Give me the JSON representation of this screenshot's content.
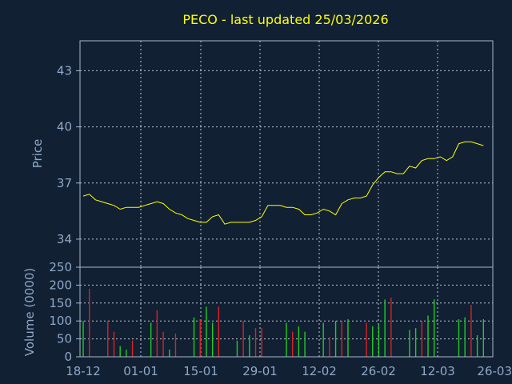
{
  "title": "PECO - last updated 25/03/2026",
  "colors": {
    "background": "#112033",
    "title": "#ffff00",
    "axis_text": "#8fa9c7",
    "frame": "#a9b8cc",
    "grid": "#c0c8d4",
    "price_line": "#ffff00",
    "volume_up": "#22cc22",
    "volume_down": "#dd2222"
  },
  "chart_data": [
    {
      "type": "line",
      "ylabel": "Price",
      "ylim": [
        32.5,
        44.6
      ],
      "yticks": [
        "34",
        "37",
        "40",
        "43"
      ],
      "grid": true,
      "x_index_range": [
        0,
        66
      ],
      "values": [
        36.3,
        36.4,
        36.1,
        36.0,
        35.9,
        35.8,
        35.6,
        35.7,
        35.7,
        35.7,
        35.8,
        35.9,
        36.0,
        35.9,
        35.6,
        35.4,
        35.3,
        35.1,
        35.0,
        34.9,
        34.9,
        35.2,
        35.3,
        34.8,
        34.9,
        34.9,
        34.9,
        34.9,
        35.0,
        35.2,
        35.8,
        35.8,
        35.8,
        35.7,
        35.7,
        35.6,
        35.3,
        35.3,
        35.4,
        35.6,
        35.5,
        35.3,
        35.9,
        36.1,
        36.2,
        36.2,
        36.3,
        36.9,
        37.3,
        37.6,
        37.6,
        37.5,
        37.5,
        37.9,
        37.8,
        38.2,
        38.3,
        38.3,
        38.4,
        38.2,
        38.4,
        39.1,
        39.2,
        39.2,
        39.1,
        39.0
      ]
    },
    {
      "type": "bar",
      "ylabel": "Volume (0000)",
      "ylim": [
        0,
        250
      ],
      "yticks": [
        "0",
        "50",
        "100",
        "150",
        "200",
        "250"
      ],
      "grid": true,
      "x_index_range": [
        0,
        66
      ],
      "values": [
        100,
        190,
        0,
        0,
        100,
        70,
        30,
        20,
        45,
        0,
        0,
        95,
        130,
        70,
        20,
        65,
        0,
        0,
        110,
        105,
        140,
        95,
        140,
        0,
        0,
        45,
        100,
        60,
        80,
        80,
        0,
        0,
        0,
        95,
        70,
        85,
        70,
        0,
        0,
        95,
        55,
        100,
        100,
        105,
        0,
        0,
        95,
        85,
        90,
        160,
        165,
        0,
        0,
        75,
        80,
        100,
        115,
        160,
        0,
        0,
        0,
        105,
        110,
        145,
        60,
        105
      ],
      "colors_by_bar": [
        "up",
        "down",
        "up",
        "up",
        "down",
        "down",
        "up",
        "up",
        "down",
        "up",
        "up",
        "up",
        "down",
        "down",
        "up",
        "down",
        "up",
        "up",
        "up",
        "down",
        "up",
        "up",
        "down",
        "up",
        "up",
        "up",
        "down",
        "up",
        "down",
        "down",
        "up",
        "up",
        "up",
        "up",
        "down",
        "up",
        "up",
        "up",
        "up",
        "up",
        "down",
        "up",
        "down",
        "up",
        "up",
        "up",
        "down",
        "up",
        "up",
        "up",
        "down",
        "up",
        "up",
        "up",
        "up",
        "down",
        "up",
        "up",
        "up",
        "up",
        "up",
        "up",
        "up",
        "down",
        "up",
        "up"
      ]
    }
  ],
  "x_axis": {
    "tick_labels": [
      "18-12",
      "01-01",
      "15-01",
      "29-01",
      "12-02",
      "26-02",
      "12-03",
      "26-03"
    ]
  }
}
